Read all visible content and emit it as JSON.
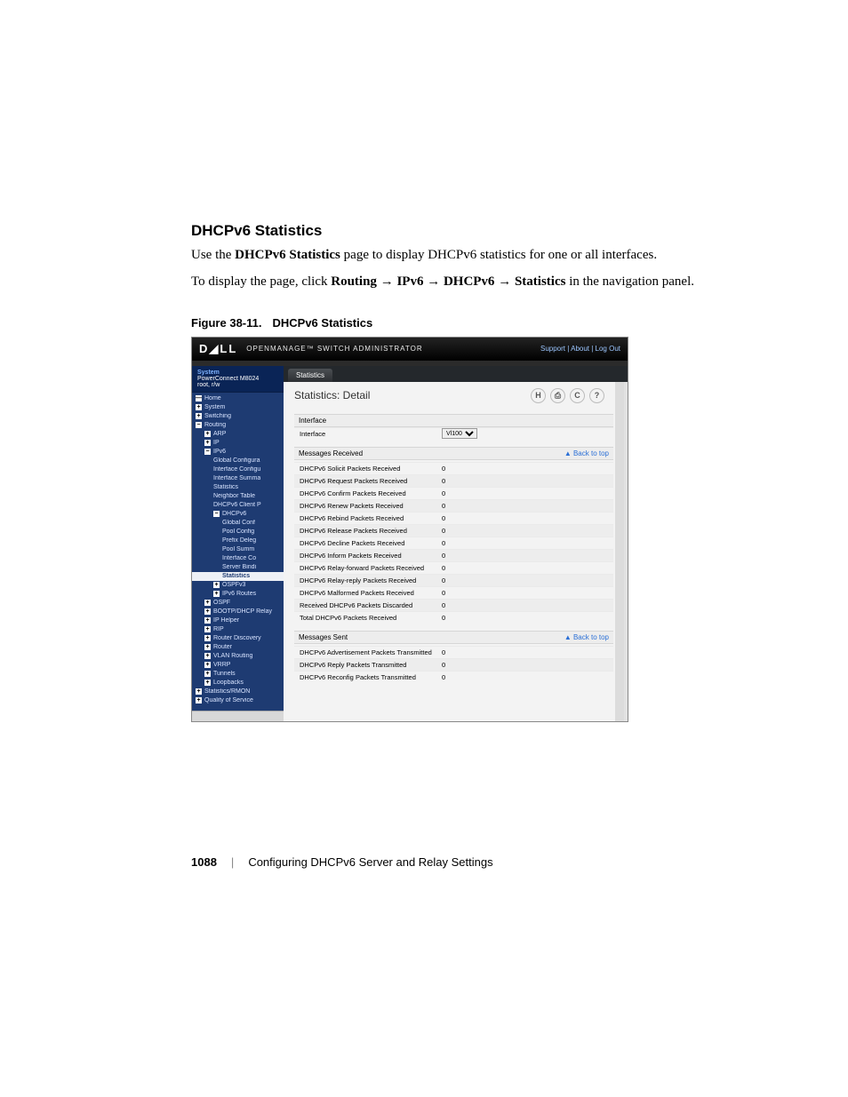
{
  "doc": {
    "heading": "DHCPv6 Statistics",
    "para1_prefix": "Use the ",
    "para1_bold": "DHCPv6 Statistics",
    "para1_suffix": " page to display DHCPv6 statistics for one or all interfaces.",
    "para2_prefix": "To display the page, click ",
    "para2_bold1": "Routing",
    "arrow": " → ",
    "para2_bold2": "IPv6",
    "para2_bold3": "DHCPv6",
    "para2_bold4": "Statistics",
    "para2_suffix": " in the navigation panel.",
    "fig_num": "Figure 38-11.",
    "fig_title": "DHCPv6 Statistics"
  },
  "topbar": {
    "logo": "D◢LL",
    "product": "OPENMANAGE™ SWITCH ADMINISTRATOR",
    "links": "Support | About | Log Out"
  },
  "sidebar_head": {
    "system": "System",
    "device": "PowerConnect M8024",
    "user": "root, r/w"
  },
  "sidebar": [
    {
      "label": "Home",
      "cls": "ind0",
      "sq": "—"
    },
    {
      "label": "System",
      "cls": "ind0",
      "sq": "+"
    },
    {
      "label": "Switching",
      "cls": "ind0",
      "sq": "+"
    },
    {
      "label": "Routing",
      "cls": "ind0",
      "sq": "−"
    },
    {
      "label": "ARP",
      "cls": "ind1",
      "sq": "+"
    },
    {
      "label": "IP",
      "cls": "ind1",
      "sq": "+"
    },
    {
      "label": "IPv6",
      "cls": "ind1",
      "sq": "−"
    },
    {
      "label": "Global Configura",
      "cls": "ind2"
    },
    {
      "label": "Interface Configu",
      "cls": "ind2"
    },
    {
      "label": "Interface Summa",
      "cls": "ind2"
    },
    {
      "label": "Statistics",
      "cls": "ind2"
    },
    {
      "label": "Neighbor Table",
      "cls": "ind2"
    },
    {
      "label": "DHCPv6 Client P",
      "cls": "ind2"
    },
    {
      "label": "DHCPv6",
      "cls": "ind2",
      "sq": "−"
    },
    {
      "label": "Global Conf",
      "cls": "ind3"
    },
    {
      "label": "Pool Config",
      "cls": "ind3"
    },
    {
      "label": "Prefix Deleg",
      "cls": "ind3"
    },
    {
      "label": "Pool Summ",
      "cls": "ind3"
    },
    {
      "label": "Interface Co",
      "cls": "ind3"
    },
    {
      "label": "Server Bindi",
      "cls": "ind3"
    },
    {
      "label": "Statistics",
      "cls": "ind3",
      "sel": true
    },
    {
      "label": "OSPFv3",
      "cls": "ind2",
      "sq": "+"
    },
    {
      "label": "IPv6 Routes",
      "cls": "ind2",
      "sq": "+"
    },
    {
      "label": "OSPF",
      "cls": "ind1",
      "sq": "+"
    },
    {
      "label": "BOOTP/DHCP Relay",
      "cls": "ind1",
      "sq": "+"
    },
    {
      "label": "IP Helper",
      "cls": "ind1",
      "sq": "+"
    },
    {
      "label": "RIP",
      "cls": "ind1",
      "sq": "+"
    },
    {
      "label": "Router Discovery",
      "cls": "ind1",
      "sq": "+"
    },
    {
      "label": "Router",
      "cls": "ind1",
      "sq": "+"
    },
    {
      "label": "VLAN Routing",
      "cls": "ind1",
      "sq": "+"
    },
    {
      "label": "VRRP",
      "cls": "ind1",
      "sq": "+"
    },
    {
      "label": "Tunnels",
      "cls": "ind1",
      "sq": "+"
    },
    {
      "label": "Loopbacks",
      "cls": "ind1",
      "sq": "+"
    },
    {
      "label": "Statistics/RMON",
      "cls": "ind0",
      "sq": "+"
    },
    {
      "label": "Quality of Service",
      "cls": "ind0",
      "sq": "+"
    }
  ],
  "tab": "Statistics",
  "panel_title": "Statistics: Detail",
  "icons": {
    "save": "H",
    "print": "⎙",
    "refresh": "C",
    "help": "?"
  },
  "iface_section": "Interface",
  "iface_row": {
    "label": "Interface",
    "value": "Vl100"
  },
  "msgs_received_h": "Messages Received",
  "msgs_sent_h": "Messages Sent",
  "back_to_top": "▲ Back to top",
  "received_rows": [
    {
      "k": "DHCPv6 Solicit Packets Received",
      "v": "0"
    },
    {
      "k": "DHCPv6 Request Packets Received",
      "v": "0"
    },
    {
      "k": "DHCPv6 Confirm Packets Received",
      "v": "0"
    },
    {
      "k": "DHCPv6 Renew Packets Received",
      "v": "0"
    },
    {
      "k": "DHCPv6 Rebind Packets Received",
      "v": "0"
    },
    {
      "k": "DHCPv6 Release Packets Received",
      "v": "0"
    },
    {
      "k": "DHCPv6 Decline Packets Received",
      "v": "0"
    },
    {
      "k": "DHCPv6 Inform Packets Received",
      "v": "0"
    },
    {
      "k": "DHCPv6 Relay-forward Packets Received",
      "v": "0"
    },
    {
      "k": "DHCPv6 Relay-reply Packets Received",
      "v": "0"
    },
    {
      "k": "DHCPv6 Malformed Packets Received",
      "v": "0"
    },
    {
      "k": "Received DHCPv6 Packets Discarded",
      "v": "0"
    },
    {
      "k": "Total DHCPv6 Packets Received",
      "v": "0"
    }
  ],
  "sent_rows": [
    {
      "k": "DHCPv6 Advertisement Packets Transmitted",
      "v": "0"
    },
    {
      "k": "DHCPv6 Reply Packets Transmitted",
      "v": "0"
    },
    {
      "k": "DHCPv6 Reconfig Packets Transmitted",
      "v": "0"
    }
  ],
  "footer": {
    "page": "1088",
    "chapter": "Configuring DHCPv6 Server and Relay Settings"
  }
}
